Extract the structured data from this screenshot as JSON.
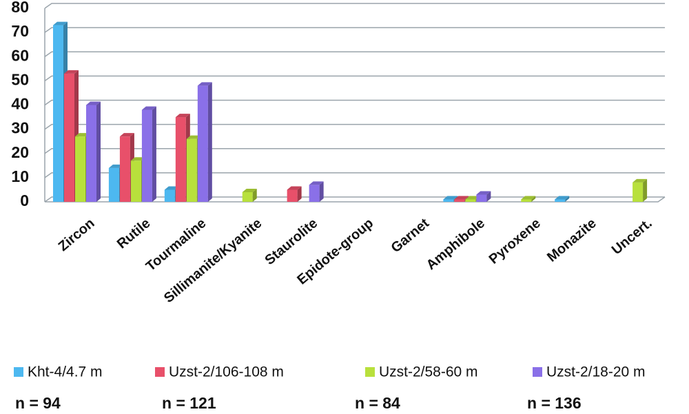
{
  "chart_data": {
    "type": "bar3d",
    "categories": [
      "Zircon",
      "Rutile",
      "Tourmaline",
      "Sillimanite/Kyanite",
      "Staurolite",
      "Epidote-group",
      "Garnet",
      "Amphibole",
      "Pyroxene",
      "Monazite",
      "Uncert."
    ],
    "series": [
      {
        "name": "Kht-4/4.7 m",
        "color": "#4db8f0",
        "values": [
          73,
          14,
          5,
          0,
          0,
          0,
          0,
          1,
          0,
          1,
          0
        ]
      },
      {
        "name": "Uzst-2/106-108 m",
        "color": "#e8506a",
        "values": [
          53,
          27,
          35,
          0,
          5,
          0,
          0,
          1,
          0,
          0,
          0
        ]
      },
      {
        "name": "Uzst-2/58-60 m",
        "color": "#b8e03c",
        "values": [
          27,
          17,
          26,
          4,
          0,
          0,
          0,
          1,
          1,
          0,
          8
        ]
      },
      {
        "name": "Uzst-2/18-20 m",
        "color": "#8a70e8",
        "values": [
          40,
          38,
          48,
          0,
          7,
          0,
          0,
          3,
          0,
          0,
          0
        ]
      }
    ],
    "ylim": [
      0,
      80
    ],
    "yticks": [
      0,
      10,
      20,
      30,
      40,
      50,
      60,
      70,
      80
    ],
    "grid": true,
    "annotations": [
      "n = 94",
      "n = 121",
      "n = 84",
      "n = 136"
    ]
  }
}
